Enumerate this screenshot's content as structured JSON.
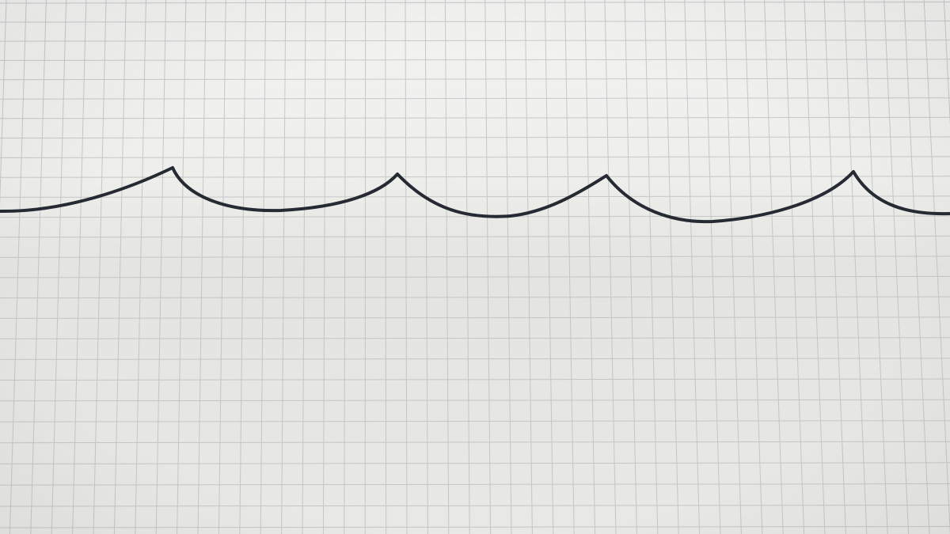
{
  "scene": {
    "subject": "hand-drawn-wave-line-on-graph-paper",
    "paper_color": "#f2f2ef",
    "shadow_color": "#d9d9d6",
    "grid_color": "#b9bcbd",
    "ink_color": "#262a33"
  }
}
